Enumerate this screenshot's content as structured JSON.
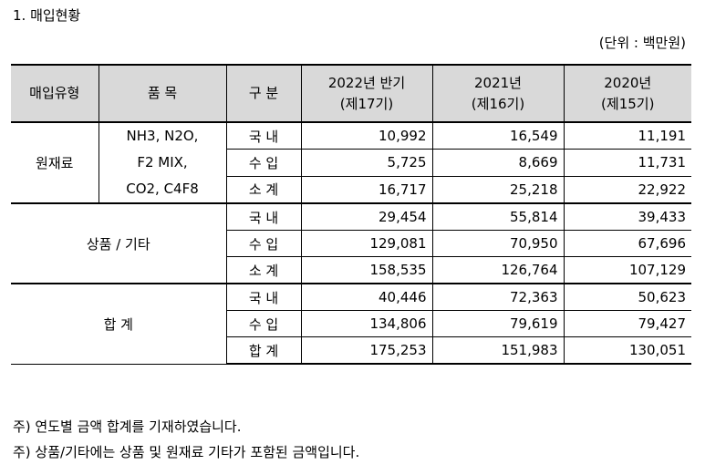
{
  "title": "1. 매입현황",
  "unit": "(단위 : 백만원)",
  "headers": {
    "type": "매입유형",
    "item": "품 목",
    "category": "구 분",
    "y2022_line1": "2022년 반기",
    "y2022_line2": "(제17기)",
    "y2021_line1": "2021년",
    "y2021_line2": "(제16기)",
    "y2020_line1": "2020년",
    "y2020_line2": "(제15기)"
  },
  "groups": [
    {
      "type": "원재료",
      "items": [
        "NH3, N2O,",
        "F2 MIX,",
        "CO2, C4F8"
      ],
      "rows": [
        {
          "category": "국 내",
          "y2022": "10,992",
          "y2021": "16,549",
          "y2020": "11,191"
        },
        {
          "category": "수 입",
          "y2022": "5,725",
          "y2021": "8,669",
          "y2020": "11,731"
        },
        {
          "category": "소 계",
          "y2022": "16,717",
          "y2021": "25,218",
          "y2020": "22,922"
        }
      ]
    },
    {
      "type": "상품 / 기타",
      "rows": [
        {
          "category": "국 내",
          "y2022": "29,454",
          "y2021": "55,814",
          "y2020": "39,433"
        },
        {
          "category": "수 입",
          "y2022": "129,081",
          "y2021": "70,950",
          "y2020": "67,696"
        },
        {
          "category": "소 계",
          "y2022": "158,535",
          "y2021": "126,764",
          "y2020": "107,129"
        }
      ]
    },
    {
      "type": "합 계",
      "rows": [
        {
          "category": "국 내",
          "y2022": "40,446",
          "y2021": "72,363",
          "y2020": "50,623"
        },
        {
          "category": "수 입",
          "y2022": "134,806",
          "y2021": "79,619",
          "y2020": "79,427"
        },
        {
          "category": "합 계",
          "y2022": "175,253",
          "y2021": "151,983",
          "y2020": "130,051"
        }
      ]
    }
  ],
  "notes": [
    "주) 연도별 금액 합계를 기재하였습니다.",
    "주) 상품/기타에는 상품 및 원재료 기타가 포함된 금액입니다."
  ]
}
